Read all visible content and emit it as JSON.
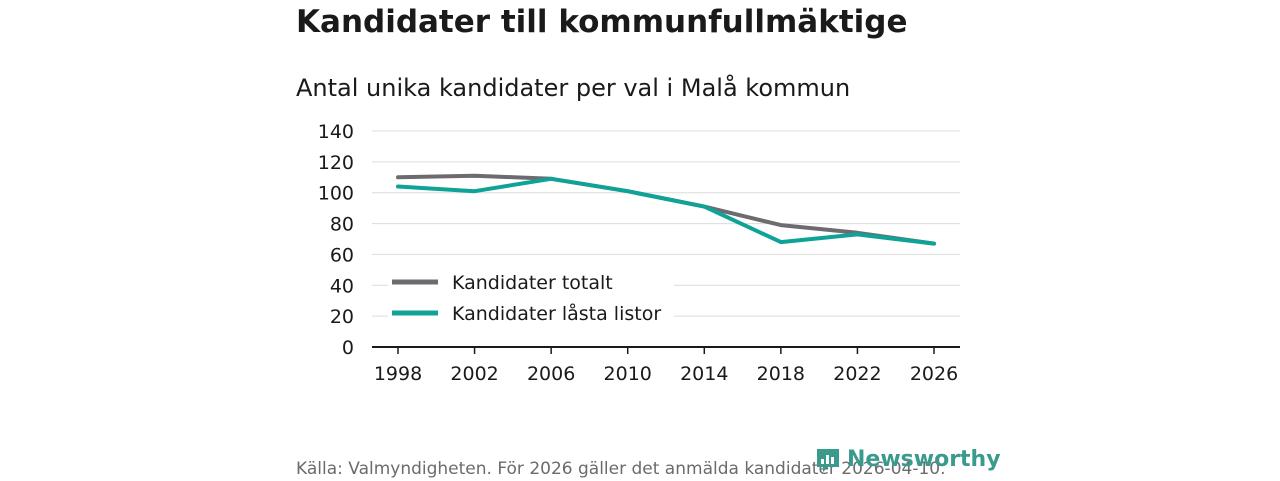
{
  "header": {
    "title": "Kandidater till kommunfullmäktige",
    "subtitle": "Antal unika kandidater per val i Malå kommun"
  },
  "chart_data": {
    "type": "line",
    "x": [
      "1998",
      "2002",
      "2006",
      "2010",
      "2014",
      "2018",
      "2022",
      "2026"
    ],
    "series": [
      {
        "name": "Kandidater totalt",
        "color": "#6e6b70",
        "values": [
          110,
          111,
          109,
          101,
          91,
          79,
          74,
          67
        ]
      },
      {
        "name": "Kandidater låsta listor",
        "color": "#0ea396",
        "values": [
          104,
          101,
          109,
          101,
          91,
          68,
          73,
          67
        ]
      }
    ],
    "yticks": [
      "0",
      "20",
      "40",
      "60",
      "80",
      "100",
      "120",
      "140"
    ],
    "ylim": [
      0,
      140
    ],
    "grid": true,
    "legend_position": "bottom-left"
  },
  "footer": {
    "source": "Källa: Valmyndigheten. För 2026 gäller det anmälda kandidater 2026-04-10.",
    "brand": "Newsworthy",
    "brand_color": "#3a9a8c"
  }
}
